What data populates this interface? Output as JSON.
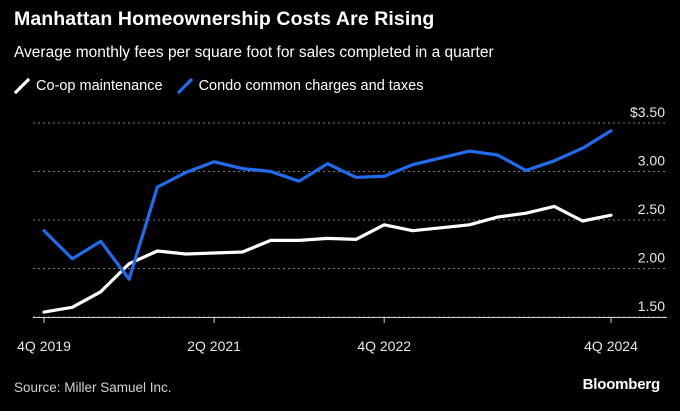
{
  "title": "Manhattan Homeownership Costs Are Rising",
  "subtitle": "Average monthly fees per square foot for sales completed in a quarter",
  "source": "Source: Miller Samuel Inc.",
  "brand": "Bloomberg",
  "colors": {
    "background": "#000000",
    "coop": "#ffffff",
    "condo": "#1f6cf0",
    "grid": "#7a7a7a"
  },
  "chart_data": {
    "type": "line",
    "title": "Manhattan Homeownership Costs Are Rising",
    "subtitle": "Average monthly fees per square foot for sales completed in a quarter",
    "x": [
      "4Q 2019",
      "1Q 2020",
      "2Q 2020",
      "3Q 2020",
      "4Q 2020",
      "1Q 2021",
      "2Q 2021",
      "3Q 2021",
      "4Q 2021",
      "1Q 2022",
      "2Q 2022",
      "3Q 2022",
      "4Q 2022",
      "1Q 2023",
      "2Q 2023",
      "3Q 2023",
      "4Q 2023",
      "1Q 2024",
      "2Q 2024",
      "3Q 2024",
      "4Q 2024"
    ],
    "x_tick_labels": [
      "4Q 2019",
      "2Q 2021",
      "4Q 2022",
      "4Q 2024"
    ],
    "x_tick_indices": [
      0,
      6,
      12,
      20
    ],
    "series": [
      {
        "name": "Co-op maintenance",
        "color": "#ffffff",
        "values": [
          1.55,
          1.6,
          1.76,
          2.05,
          2.18,
          2.15,
          2.16,
          2.17,
          2.29,
          2.29,
          2.31,
          2.3,
          2.45,
          2.39,
          2.42,
          2.45,
          2.53,
          2.57,
          2.64,
          2.49,
          2.55
        ]
      },
      {
        "name": "Condo common charges and taxes",
        "color": "#1f6cf0",
        "values": [
          2.39,
          2.1,
          2.28,
          1.89,
          2.84,
          2.99,
          3.1,
          3.03,
          3.0,
          2.9,
          3.08,
          2.94,
          2.95,
          3.07,
          3.14,
          3.21,
          3.17,
          3.01,
          3.11,
          3.24,
          3.42
        ]
      }
    ],
    "y_ticks": [
      1.5,
      2.0,
      2.5,
      3.0,
      3.5
    ],
    "y_tick_labels": [
      "1.50",
      "2.00",
      "2.50",
      "3.00",
      "$3.50"
    ],
    "ylim": [
      1.5,
      3.5
    ],
    "grid": true,
    "legend_position": "top-left"
  }
}
